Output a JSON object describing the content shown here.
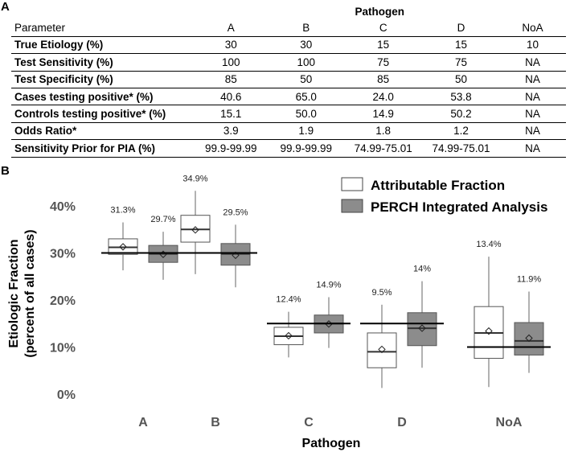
{
  "panel_a_label": "A",
  "panel_b_label": "B",
  "table": {
    "group_header": "Pathogen",
    "columns": [
      "Parameter",
      "A",
      "B",
      "C",
      "D",
      "NoA"
    ],
    "rows": [
      {
        "param": "True Etiology (%)",
        "values": [
          "30",
          "30",
          "15",
          "15",
          "10"
        ]
      },
      {
        "param": "Test Sensitivity (%)",
        "values": [
          "100",
          "100",
          "75",
          "75",
          "NA"
        ]
      },
      {
        "param": "Test Specificity (%)",
        "values": [
          "85",
          "50",
          "85",
          "50",
          "NA"
        ]
      },
      {
        "param": "Cases testing positive* (%)",
        "values": [
          "40.6",
          "65.0",
          "24.0",
          "53.8",
          "NA"
        ]
      },
      {
        "param": "Controls testing positive* (%)",
        "values": [
          "15.1",
          "50.0",
          "14.9",
          "50.2",
          "NA"
        ]
      },
      {
        "param": "Odds Ratio*",
        "values": [
          "3.9",
          "1.9",
          "1.8",
          "1.2",
          "NA"
        ]
      },
      {
        "param": "Sensitivity Prior for PIA (%)",
        "values": [
          "99.9-99.99",
          "99.9-99.99",
          "74.99-75.01",
          "74.99-75.01",
          "NA"
        ]
      }
    ]
  },
  "chart_data": {
    "type": "boxplot",
    "xlabel": "Pathogen",
    "ylabel_line1": "Etiologic Fraction",
    "ylabel_line2": "(percent of all cases)",
    "ylim": [
      0,
      42
    ],
    "yticks": [
      "0%",
      "10%",
      "20%",
      "30%",
      "40%"
    ],
    "ytick_values": [
      0,
      10,
      20,
      30,
      40
    ],
    "categories": [
      "A",
      "B",
      "C",
      "D",
      "NoA"
    ],
    "true_values": [
      30,
      30,
      15,
      15,
      10
    ],
    "legend": [
      {
        "name": "Attributable Fraction",
        "color": "#ffffff"
      },
      {
        "name": "PERCH Integrated Analysis",
        "color": "#8c8c8c"
      }
    ],
    "legend_position": "top-right",
    "series": [
      {
        "name": "Attributable Fraction",
        "fill": "#ffffff",
        "boxes": [
          {
            "whisker_low": 26.3,
            "q1": 29.7,
            "median": 31.2,
            "q3": 33.0,
            "whisker_high": 36.5,
            "mean": 31.3,
            "mean_label": "31.3%"
          },
          {
            "whisker_low": 25.5,
            "q1": 32.3,
            "median": 35.0,
            "q3": 38.0,
            "whisker_high": 43.2,
            "mean": 34.9,
            "mean_label": "34.9%"
          },
          {
            "whisker_low": 7.8,
            "q1": 10.5,
            "median": 12.3,
            "q3": 14.2,
            "whisker_high": 17.5,
            "mean": 12.4,
            "mean_label": "12.4%"
          },
          {
            "whisker_low": 1.3,
            "q1": 5.6,
            "median": 9.0,
            "q3": 13.0,
            "whisker_high": 19.0,
            "mean": 9.5,
            "mean_label": "9.5%"
          },
          {
            "whisker_low": 1.5,
            "q1": 7.6,
            "median": 13.0,
            "q3": 18.6,
            "whisker_high": 29.2,
            "mean": 13.4,
            "mean_label": "13.4%"
          }
        ]
      },
      {
        "name": "PERCH Integrated Analysis",
        "fill": "#8c8c8c",
        "boxes": [
          {
            "whisker_low": 24.3,
            "q1": 28.0,
            "median": 29.8,
            "q3": 31.6,
            "whisker_high": 34.5,
            "mean": 29.7,
            "mean_label": "29.7%"
          },
          {
            "whisker_low": 22.7,
            "q1": 27.4,
            "median": 29.8,
            "q3": 32.0,
            "whisker_high": 36.0,
            "mean": 29.5,
            "mean_label": "29.5%"
          },
          {
            "whisker_low": 9.8,
            "q1": 13.0,
            "median": 15.0,
            "q3": 16.8,
            "whisker_high": 20.6,
            "mean": 14.9,
            "mean_label": "14.9%"
          },
          {
            "whisker_low": 5.6,
            "q1": 10.3,
            "median": 14.0,
            "q3": 17.3,
            "whisker_high": 24.0,
            "mean": 14.0,
            "mean_label": "14%"
          },
          {
            "whisker_low": 4.5,
            "q1": 8.3,
            "median": 11.3,
            "q3": 15.2,
            "whisker_high": 21.8,
            "mean": 11.9,
            "mean_label": "11.9%"
          }
        ]
      }
    ]
  }
}
